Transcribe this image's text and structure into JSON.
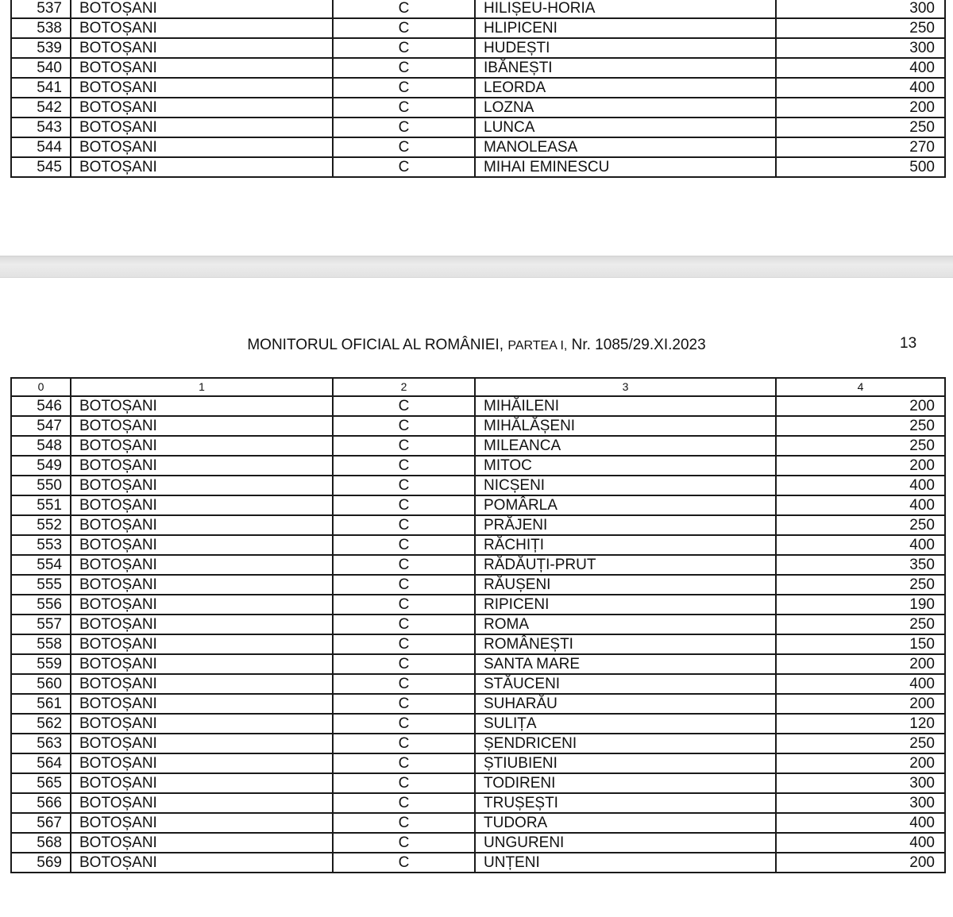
{
  "header": {
    "title_main": "MONITORUL OFICIAL AL ROMÂNIEI,",
    "title_part": "PARTEA I,",
    "title_issue": "Nr. 1085/29.XI.2023",
    "page_number": "13"
  },
  "columns": [
    "0",
    "1",
    "2",
    "3",
    "4"
  ],
  "top_rows": [
    [
      "537",
      "BOTOȘANI",
      "C",
      "HILIȘEU-HORIA",
      "300"
    ],
    [
      "538",
      "BOTOȘANI",
      "C",
      "HLIPICENI",
      "250"
    ],
    [
      "539",
      "BOTOȘANI",
      "C",
      "HUDEȘTI",
      "300"
    ],
    [
      "540",
      "BOTOȘANI",
      "C",
      "IBĂNEȘTI",
      "400"
    ],
    [
      "541",
      "BOTOȘANI",
      "C",
      "LEORDA",
      "400"
    ],
    [
      "542",
      "BOTOȘANI",
      "C",
      "LOZNA",
      "200"
    ],
    [
      "543",
      "BOTOȘANI",
      "C",
      "LUNCA",
      "250"
    ],
    [
      "544",
      "BOTOȘANI",
      "C",
      "MANOLEASA",
      "270"
    ],
    [
      "545",
      "BOTOȘANI",
      "C",
      "MIHAI EMINESCU",
      "500"
    ]
  ],
  "bottom_rows": [
    [
      "546",
      "BOTOȘANI",
      "C",
      "MIHĂILENI",
      "200"
    ],
    [
      "547",
      "BOTOȘANI",
      "C",
      "MIHĂLĂȘENI",
      "250"
    ],
    [
      "548",
      "BOTOȘANI",
      "C",
      "MILEANCA",
      "250"
    ],
    [
      "549",
      "BOTOȘANI",
      "C",
      "MITOC",
      "200"
    ],
    [
      "550",
      "BOTOȘANI",
      "C",
      "NICȘENI",
      "400"
    ],
    [
      "551",
      "BOTOȘANI",
      "C",
      "POMÂRLA",
      "400"
    ],
    [
      "552",
      "BOTOȘANI",
      "C",
      "PRĂJENI",
      "250"
    ],
    [
      "553",
      "BOTOȘANI",
      "C",
      "RĂCHIȚI",
      "400"
    ],
    [
      "554",
      "BOTOȘANI",
      "C",
      "RĂDĂUȚI-PRUT",
      "350"
    ],
    [
      "555",
      "BOTOȘANI",
      "C",
      "RĂUȘENI",
      "250"
    ],
    [
      "556",
      "BOTOȘANI",
      "C",
      "RIPICENI",
      "190"
    ],
    [
      "557",
      "BOTOȘANI",
      "C",
      "ROMA",
      "250"
    ],
    [
      "558",
      "BOTOȘANI",
      "C",
      "ROMÂNEȘTI",
      "150"
    ],
    [
      "559",
      "BOTOȘANI",
      "C",
      "SANTA MARE",
      "200"
    ],
    [
      "560",
      "BOTOȘANI",
      "C",
      "STĂUCENI",
      "400"
    ],
    [
      "561",
      "BOTOȘANI",
      "C",
      "SUHARĂU",
      "200"
    ],
    [
      "562",
      "BOTOȘANI",
      "C",
      "SULIȚA",
      "120"
    ],
    [
      "563",
      "BOTOȘANI",
      "C",
      "ȘENDRICENI",
      "250"
    ],
    [
      "564",
      "BOTOȘANI",
      "C",
      "ȘTIUBIENI",
      "200"
    ],
    [
      "565",
      "BOTOȘANI",
      "C",
      "TODIRENI",
      "300"
    ],
    [
      "566",
      "BOTOȘANI",
      "C",
      "TRUȘEȘTI",
      "300"
    ],
    [
      "567",
      "BOTOȘANI",
      "C",
      "TUDORA",
      "400"
    ],
    [
      "568",
      "BOTOȘANI",
      "C",
      "UNGURENI",
      "400"
    ],
    [
      "569",
      "BOTOȘANI",
      "C",
      "UNȚENI",
      "200"
    ]
  ]
}
